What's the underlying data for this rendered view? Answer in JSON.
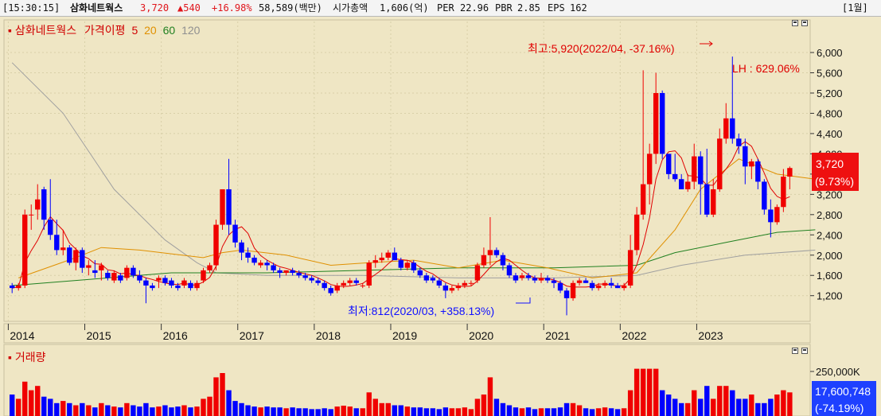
{
  "topbar": {
    "time": "[15:30:15]",
    "name": "삼화네트웍스",
    "price": "3,720",
    "change": "▲540",
    "change_pct": "+16.98%",
    "volume": "58,589(백만)",
    "market_cap_label": "시가총액",
    "market_cap": "1,606(억)",
    "per_label": "PER",
    "per": "22.96",
    "pbr_label": "PBR",
    "pbr": "2.85",
    "eps_label": "EPS",
    "eps": "162",
    "period": "[1월]"
  },
  "colors": {
    "up": "#f00000",
    "down": "#0000ff",
    "ma5": "#e00000",
    "ma20": "#e09000",
    "ma60": "#208020",
    "ma120": "#a0a0a0",
    "bg": "#f0e8c8",
    "vol_up": "#f00000",
    "vol_down": "#0000ff"
  },
  "chart_data": [
    {
      "type": "candlestick",
      "title": "삼화네트웍스",
      "legend": [
        {
          "label": "가격이평",
          "color": "#e00000"
        },
        {
          "label": "5",
          "color": "#e00000"
        },
        {
          "label": "20",
          "color": "#e09000"
        },
        {
          "label": "60",
          "color": "#208020"
        },
        {
          "label": "120",
          "color": "#a0a0a0"
        }
      ],
      "y_ticks": [
        1200,
        1600,
        2000,
        2400,
        2800,
        3200,
        3600,
        4000,
        4400,
        4800,
        5200,
        5600,
        6000
      ],
      "y_tick_labels": [
        "1,200",
        "1,600",
        "2,000",
        "2,400",
        "2,800",
        "3,200",
        "3,600",
        "4,000",
        "4,400",
        "4,800",
        "5,200",
        "5,600",
        "6,000"
      ],
      "ylim": [
        740,
        6550
      ],
      "x_labels": [
        "2014",
        "2015",
        "2016",
        "2017",
        "2018",
        "2019",
        "2020",
        "2021",
        "2022",
        "2023"
      ],
      "current_price": "3,720",
      "current_change": "(9.73%)",
      "annotation_high": "최고:5,920(2022/04, -37.16%)",
      "annotation_low": "최저:812(2020/03, +358.13%)",
      "annotation_lh": "LH : 629.06%",
      "monthly_ohlc": [
        [
          1400,
          1450,
          1250,
          1350
        ],
        [
          1350,
          1450,
          1300,
          1400
        ],
        [
          1400,
          2900,
          1350,
          2800
        ],
        [
          2800,
          3000,
          2500,
          2800
        ],
        [
          2900,
          3400,
          2700,
          3100
        ],
        [
          3300,
          3350,
          2500,
          2700
        ],
        [
          2700,
          3500,
          2300,
          2400
        ],
        [
          2400,
          2700,
          2000,
          2100
        ],
        [
          2100,
          2500,
          2000,
          2150
        ],
        [
          2150,
          2200,
          1800,
          1850
        ],
        [
          1850,
          2150,
          1700,
          2100
        ],
        [
          2100,
          2150,
          1650,
          1750
        ],
        [
          1750,
          1900,
          1600,
          1800
        ],
        [
          1700,
          1900,
          1550,
          1650
        ],
        [
          1700,
          1850,
          1500,
          1800
        ],
        [
          1650,
          1700,
          1500,
          1550
        ],
        [
          1500,
          1700,
          1450,
          1650
        ],
        [
          1600,
          1650,
          1450,
          1500
        ],
        [
          1550,
          1800,
          1500,
          1750
        ],
        [
          1750,
          1800,
          1550,
          1600
        ],
        [
          1600,
          1700,
          1450,
          1500
        ],
        [
          1500,
          1550,
          1050,
          1400
        ],
        [
          1400,
          1450,
          1300,
          1350
        ],
        [
          1500,
          1600,
          1350,
          1550
        ],
        [
          1550,
          1600,
          1400,
          1450
        ],
        [
          1500,
          1550,
          1350,
          1400
        ],
        [
          1400,
          1450,
          1300,
          1350
        ],
        [
          1400,
          1550,
          1350,
          1500
        ],
        [
          1450,
          1500,
          1300,
          1350
        ],
        [
          1350,
          1500,
          1300,
          1450
        ],
        [
          1500,
          1750,
          1450,
          1700
        ],
        [
          1700,
          1850,
          1650,
          1800
        ],
        [
          1800,
          2700,
          1700,
          2600
        ],
        [
          2600,
          3300,
          2500,
          3300
        ],
        [
          3300,
          3900,
          2400,
          2600
        ],
        [
          2600,
          2700,
          2150,
          2250
        ],
        [
          2250,
          2300,
          1900,
          2050
        ],
        [
          2050,
          2150,
          1850,
          1950
        ],
        [
          1950,
          2000,
          1800,
          1850
        ],
        [
          1800,
          1900,
          1750,
          1850
        ],
        [
          1850,
          1900,
          1700,
          1800
        ],
        [
          1800,
          1850,
          1650,
          1700
        ],
        [
          1700,
          1750,
          1550,
          1650
        ],
        [
          1650,
          1700,
          1600,
          1700
        ],
        [
          1700,
          1750,
          1600,
          1650
        ],
        [
          1650,
          1700,
          1550,
          1600
        ],
        [
          1600,
          1650,
          1500,
          1550
        ],
        [
          1550,
          1600,
          1450,
          1500
        ],
        [
          1500,
          1550,
          1400,
          1450
        ],
        [
          1450,
          1500,
          1300,
          1350
        ],
        [
          1350,
          1400,
          1200,
          1250
        ],
        [
          1300,
          1450,
          1250,
          1400
        ],
        [
          1400,
          1500,
          1350,
          1450
        ],
        [
          1450,
          1550,
          1400,
          1500
        ],
        [
          1500,
          1550,
          1400,
          1450
        ],
        [
          1400,
          1450,
          1350,
          1400
        ],
        [
          1400,
          1900,
          1350,
          1850
        ],
        [
          1850,
          2000,
          1750,
          1900
        ],
        [
          1900,
          2050,
          1850,
          1950
        ],
        [
          1950,
          2100,
          1900,
          2050
        ],
        [
          2050,
          2150,
          1950,
          1900
        ],
        [
          1900,
          1950,
          1700,
          1750
        ],
        [
          1750,
          1900,
          1700,
          1850
        ],
        [
          1850,
          1900,
          1650,
          1700
        ],
        [
          1700,
          1750,
          1550,
          1600
        ],
        [
          1600,
          1650,
          1450,
          1500
        ],
        [
          1550,
          1600,
          1450,
          1500
        ],
        [
          1500,
          1550,
          1350,
          1400
        ],
        [
          1400,
          1450,
          1150,
          1300
        ],
        [
          1300,
          1400,
          1250,
          1350
        ],
        [
          1350,
          1450,
          1300,
          1400
        ],
        [
          1400,
          1500,
          1350,
          1450
        ],
        [
          1450,
          1500,
          1400,
          1450
        ],
        [
          1500,
          1850,
          1450,
          1800
        ],
        [
          1800,
          2150,
          1750,
          2000
        ],
        [
          2000,
          2750,
          1800,
          2100
        ],
        [
          2100,
          2150,
          1950,
          2000
        ],
        [
          2000,
          2050,
          1700,
          1800
        ],
        [
          1800,
          1850,
          1550,
          1600
        ],
        [
          1600,
          1650,
          1450,
          1500
        ],
        [
          1550,
          1650,
          1500,
          1600
        ],
        [
          1600,
          1650,
          1500,
          1550
        ],
        [
          1550,
          1600,
          1450,
          1500
        ],
        [
          1500,
          1650,
          1450,
          1550
        ],
        [
          1550,
          1600,
          1450,
          1500
        ],
        [
          1500,
          1550,
          1350,
          1450
        ],
        [
          1450,
          1500,
          1250,
          1300
        ],
        [
          1300,
          1350,
          812,
          1150
        ],
        [
          1150,
          1500,
          1100,
          1450
        ],
        [
          1450,
          1550,
          1400,
          1500
        ],
        [
          1500,
          1550,
          1450,
          1450
        ],
        [
          1450,
          1500,
          1300,
          1350
        ],
        [
          1350,
          1450,
          1300,
          1400
        ],
        [
          1400,
          1500,
          1350,
          1450
        ],
        [
          1450,
          1550,
          1350,
          1400
        ],
        [
          1400,
          1450,
          1350,
          1350
        ],
        [
          1350,
          1450,
          1300,
          1400
        ],
        [
          1400,
          2400,
          1350,
          2100
        ],
        [
          2100,
          2950,
          2000,
          2800
        ],
        [
          2800,
          5650,
          2700,
          3400
        ],
        [
          3400,
          4200,
          3000,
          4000
        ],
        [
          4000,
          5600,
          3800,
          5200
        ],
        [
          5200,
          5250,
          3900,
          4000
        ],
        [
          4000,
          4000,
          3500,
          3600
        ],
        [
          3600,
          4000,
          3450,
          3500
        ],
        [
          3500,
          3600,
          3300,
          3300
        ],
        [
          3300,
          3600,
          3250,
          3450
        ],
        [
          3450,
          4200,
          3300,
          3950
        ],
        [
          3950,
          4050,
          2800,
          3400
        ],
        [
          3400,
          4100,
          2750,
          2800
        ],
        [
          2800,
          3500,
          2750,
          3300
        ],
        [
          3300,
          4500,
          3250,
          4300
        ],
        [
          4300,
          5000,
          4200,
          4700
        ],
        [
          4700,
          5920,
          4200,
          4300
        ],
        [
          4300,
          4400,
          4000,
          4150
        ],
        [
          4150,
          4300,
          3400,
          3750
        ],
        [
          3750,
          3900,
          3500,
          3850
        ],
        [
          3850,
          3900,
          3300,
          3450
        ],
        [
          3450,
          3500,
          2800,
          2900
        ],
        [
          2900,
          3100,
          2350,
          2650
        ],
        [
          2650,
          3000,
          2600,
          2950
        ],
        [
          2950,
          3700,
          2850,
          3550
        ],
        [
          3550,
          3750,
          3300,
          3720
        ]
      ],
      "ma5": [],
      "ma20_points": [
        [
          1,
          1550
        ],
        [
          10,
          1950
        ],
        [
          14,
          2150
        ],
        [
          20,
          2100
        ],
        [
          30,
          1950
        ],
        [
          33,
          2050
        ],
        [
          36,
          2100
        ],
        [
          43,
          2000
        ],
        [
          50,
          1800
        ],
        [
          56,
          1850
        ],
        [
          63,
          1900
        ],
        [
          70,
          1750
        ],
        [
          77,
          1900
        ],
        [
          84,
          1750
        ],
        [
          91,
          1550
        ],
        [
          98,
          1650
        ],
        [
          104,
          2500
        ],
        [
          108,
          3300
        ],
        [
          114,
          3900
        ],
        [
          120,
          3600
        ],
        [
          126,
          3500
        ]
      ],
      "ma60_points": [
        [
          0,
          1400
        ],
        [
          15,
          1550
        ],
        [
          25,
          1650
        ],
        [
          40,
          1650
        ],
        [
          55,
          1700
        ],
        [
          70,
          1750
        ],
        [
          85,
          1750
        ],
        [
          98,
          1800
        ],
        [
          104,
          2050
        ],
        [
          112,
          2250
        ],
        [
          120,
          2450
        ],
        [
          126,
          2500
        ]
      ],
      "ma120_points": [
        [
          0,
          5800
        ],
        [
          8,
          4800
        ],
        [
          16,
          3300
        ],
        [
          24,
          2300
        ],
        [
          29,
          1850
        ],
        [
          32,
          1650
        ],
        [
          40,
          1600
        ],
        [
          55,
          1600
        ],
        [
          70,
          1550
        ],
        [
          85,
          1550
        ],
        [
          98,
          1600
        ],
        [
          105,
          1800
        ],
        [
          115,
          2000
        ],
        [
          126,
          2100
        ]
      ]
    },
    {
      "type": "bar",
      "title": "거래량",
      "y_tick_labels": [
        "250,000K"
      ],
      "y_ticks": [
        250000000
      ],
      "current_volume": "17,600,748",
      "current_volume_change": "(-74.19%)",
      "ylim": [
        0,
        330000000
      ],
      "monthly_volume": [
        50,
        40,
        80,
        60,
        70,
        45,
        40,
        30,
        35,
        30,
        25,
        30,
        25,
        20,
        30,
        25,
        22,
        20,
        30,
        25,
        22,
        30,
        20,
        22,
        25,
        20,
        22,
        25,
        20,
        22,
        40,
        45,
        90,
        100,
        60,
        35,
        30,
        25,
        22,
        20,
        22,
        20,
        20,
        18,
        20,
        18,
        18,
        16,
        16,
        18,
        16,
        22,
        24,
        22,
        18,
        18,
        55,
        40,
        30,
        30,
        25,
        25,
        22,
        20,
        20,
        18,
        18,
        16,
        20,
        18,
        18,
        20,
        16,
        40,
        50,
        90,
        40,
        30,
        25,
        20,
        18,
        20,
        16,
        18,
        18,
        18,
        20,
        30,
        30,
        25,
        18,
        16,
        18,
        20,
        18,
        16,
        18,
        60,
        120,
        300,
        160,
        140,
        60,
        50,
        40,
        30,
        30,
        60,
        40,
        70,
        40,
        70,
        70,
        60,
        40,
        40,
        50,
        30,
        30,
        40,
        50,
        60,
        55
      ]
    }
  ]
}
